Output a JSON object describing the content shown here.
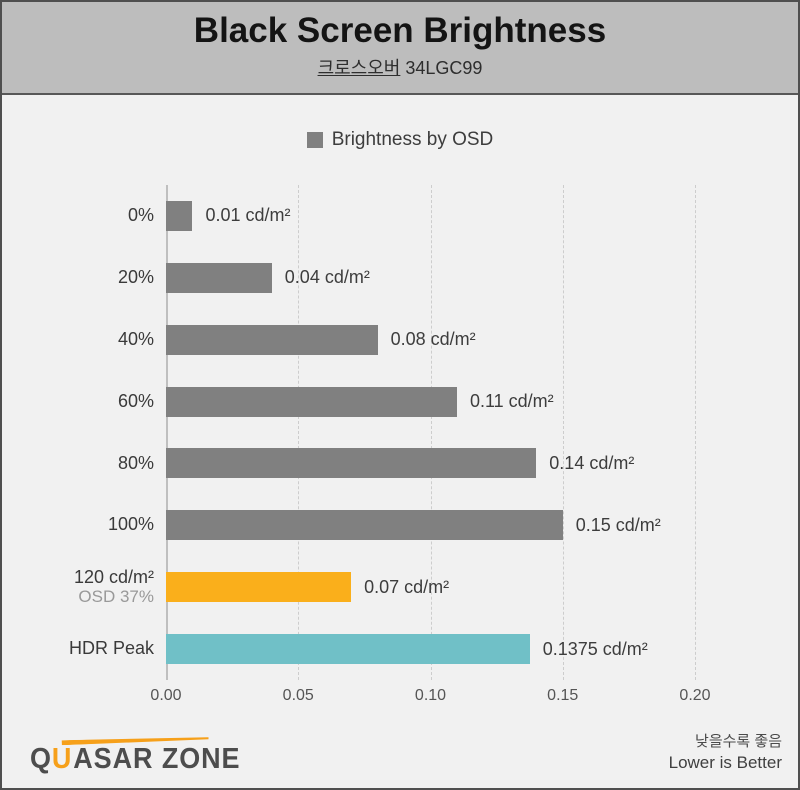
{
  "header": {
    "title": "Black Screen Brightness",
    "subtitle_brand": "크로스오버",
    "subtitle_model": " 34LGC99"
  },
  "legend": {
    "label": "Brightness by OSD",
    "swatch_color": "#808080"
  },
  "chart_data": {
    "type": "bar",
    "orientation": "horizontal",
    "title": "Black Screen Brightness",
    "subtitle": "크로스오버 34LGC99",
    "legend": [
      "Brightness by OSD"
    ],
    "legend_position": "top-center",
    "grid": "vertical-dashed",
    "unit": "cd/m²",
    "xlim": [
      0,
      0.23
    ],
    "xticks": [
      0.0,
      0.05,
      0.1,
      0.15,
      0.2
    ],
    "xtick_labels": [
      "0.00",
      "0.05",
      "0.10",
      "0.15",
      "0.20"
    ],
    "bars": [
      {
        "category": "0%",
        "sub": "",
        "value": 0.01,
        "label": "0.01 cd/m²",
        "color": "#808080"
      },
      {
        "category": "20%",
        "sub": "",
        "value": 0.04,
        "label": "0.04 cd/m²",
        "color": "#808080"
      },
      {
        "category": "40%",
        "sub": "",
        "value": 0.08,
        "label": "0.08 cd/m²",
        "color": "#808080"
      },
      {
        "category": "60%",
        "sub": "",
        "value": 0.11,
        "label": "0.11 cd/m²",
        "color": "#808080"
      },
      {
        "category": "80%",
        "sub": "",
        "value": 0.14,
        "label": "0.14 cd/m²",
        "color": "#808080"
      },
      {
        "category": "100%",
        "sub": "",
        "value": 0.15,
        "label": "0.15 cd/m²",
        "color": "#808080"
      },
      {
        "category": "120 cd/m²",
        "sub": "OSD 37%",
        "value": 0.07,
        "label": "0.07 cd/m²",
        "color": "#faaf1b"
      },
      {
        "category": "HDR Peak",
        "sub": "",
        "value": 0.1375,
        "label": "0.1375 cd/m²",
        "color": "#70c0c7"
      }
    ]
  },
  "footer": {
    "logo_q": "Q",
    "logo_u": "U",
    "logo_rest": "ASAR ZONE",
    "note_ko": "낮을수록 좋음",
    "note_en": "Lower is Better"
  },
  "colors": {
    "frame_border": "#4f4f4f",
    "header_bg": "#bdbdbd",
    "body_bg": "#f1f1f1",
    "bar_gray": "#808080",
    "bar_orange": "#faaf1b",
    "bar_teal": "#70c0c7",
    "logo_accent": "#f6a01a"
  }
}
